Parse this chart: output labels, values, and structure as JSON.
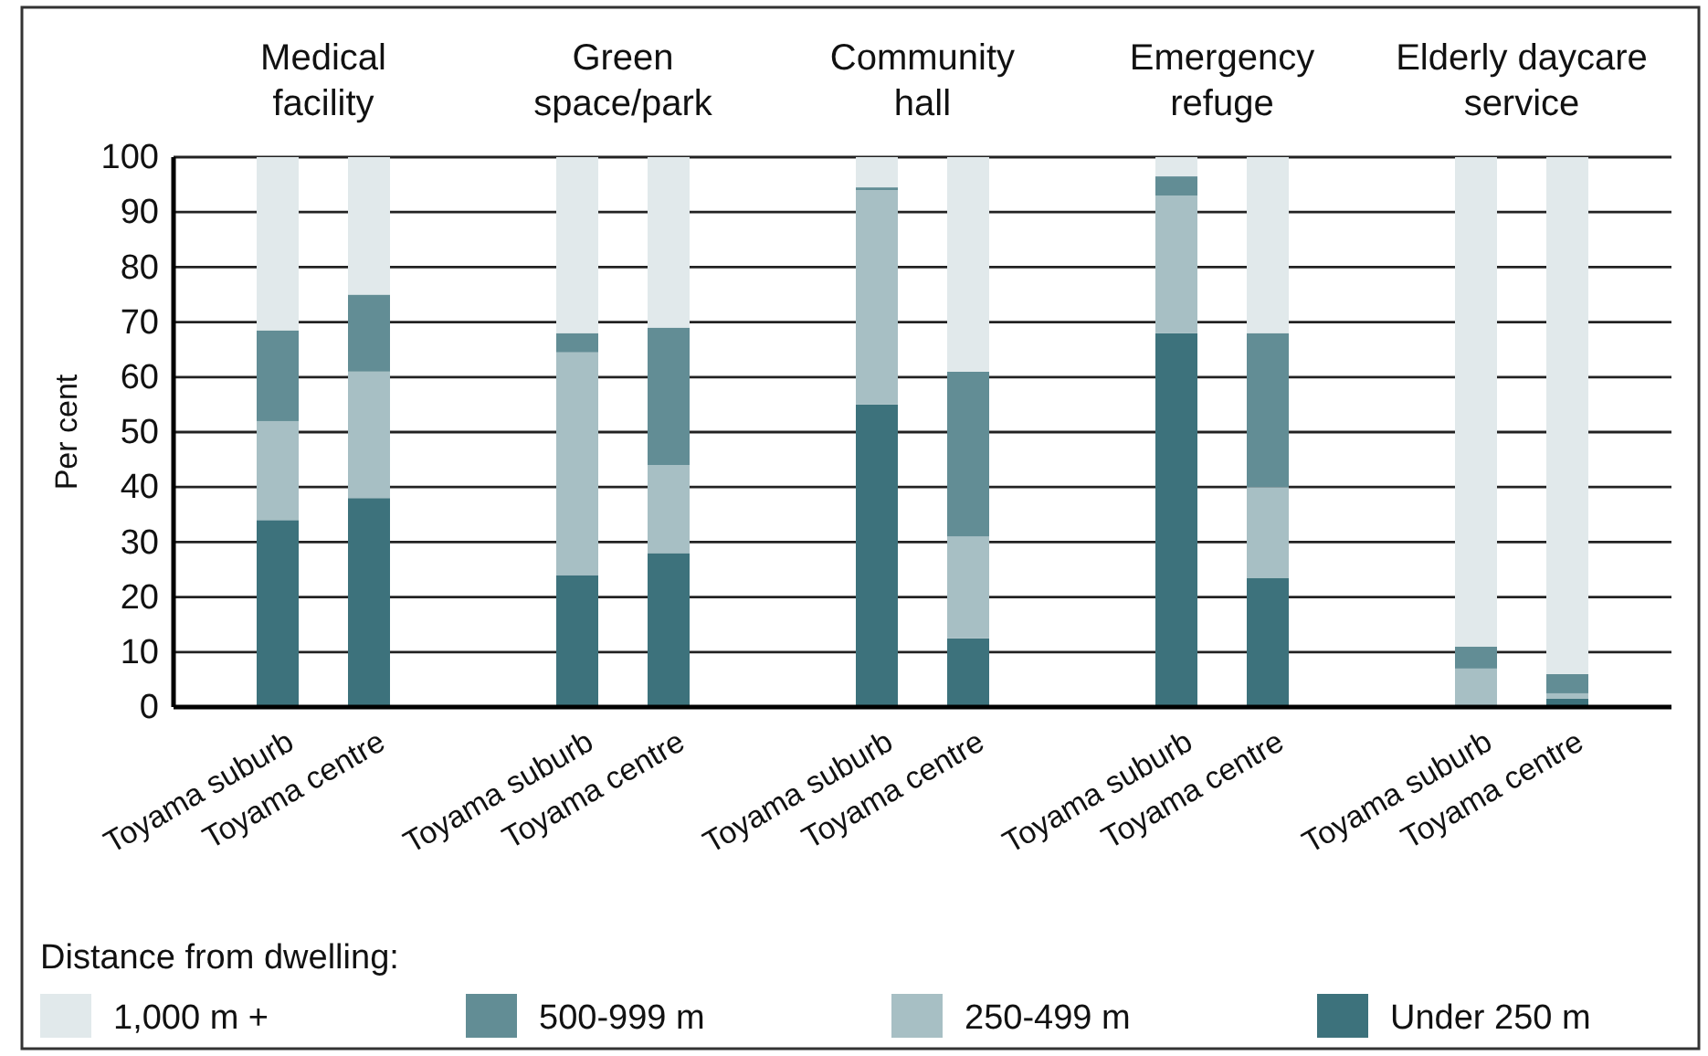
{
  "chart_data": {
    "type": "bar",
    "stacked": true,
    "ylabel": "Per cent",
    "legend_title": "Distance from dwelling:",
    "legend": "bottom",
    "grid": "y",
    "annotations": [
      "Medical facility",
      "Green space/park",
      "Community hall",
      "Emergency refuge",
      "Elderly daycare service"
    ],
    "categories": [
      "Toyama suburb",
      "Toyama centre",
      "Toyama suburb",
      "Toyama centre",
      "Toyama suburb",
      "Toyama centre",
      "Toyama suburb",
      "Toyama centre",
      "Toyama suburb",
      "Toyama centre"
    ],
    "ylim": [
      0,
      100
    ],
    "yticks": [
      0,
      10,
      20,
      30,
      40,
      50,
      60,
      70,
      80,
      90,
      100
    ],
    "series": [
      {
        "name": "Under 250 m",
        "color": "#3d727c",
        "values": [
          34,
          38,
          24,
          28,
          55,
          12.5,
          68,
          23.5,
          0,
          1.5
        ]
      },
      {
        "name": "250-499 m",
        "color": "#a7bfc4",
        "values": [
          18,
          23,
          40.5,
          16,
          39,
          18.5,
          25,
          16.5,
          7,
          1
        ]
      },
      {
        "name": "500-999 m",
        "color": "#628d95",
        "values": [
          16.5,
          14,
          3.5,
          25,
          0.5,
          30,
          3.5,
          28,
          4,
          3.5
        ]
      },
      {
        "name": "1,000 m +",
        "color": "#e1e9eb",
        "values": [
          31.5,
          25,
          32,
          31,
          5.5,
          39,
          3.5,
          32,
          89,
          94
        ]
      }
    ]
  }
}
